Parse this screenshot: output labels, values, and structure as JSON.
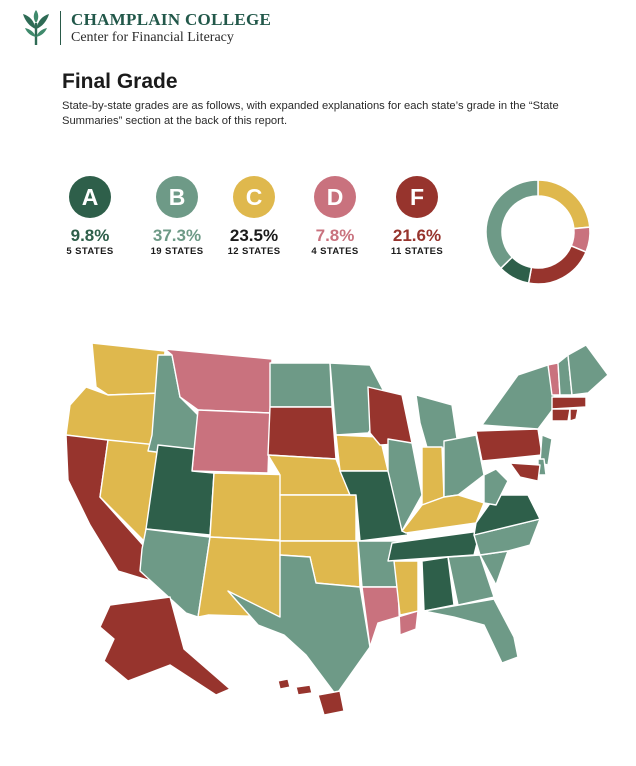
{
  "header": {
    "brand_name": "CHAMPLAIN COLLEGE",
    "brand_sub": "Center for Financial Literacy",
    "logo_icon": "leaf-logo-icon"
  },
  "title": "Final Grade",
  "intro": "State-by-state grades are as follows, with expanded explanations for each state’s grade in the “State Summaries” section at the back of this report.",
  "colors": {
    "A": "#2e5f4a",
    "B": "#6e9a87",
    "C": "#dfb84d",
    "D": "#c9727e",
    "F": "#97342d"
  },
  "chart_data": [
    {
      "type": "pie",
      "variant": "donut",
      "categories": [
        "A",
        "B",
        "C",
        "D",
        "F"
      ],
      "values": [
        9.8,
        37.3,
        23.5,
        7.8,
        21.6
      ],
      "value_labels": [
        "9.8%",
        "37.3%",
        "23.5%",
        "7.8%",
        "21.6%"
      ],
      "state_counts": [
        5,
        19,
        12,
        4,
        11
      ],
      "count_labels": [
        "5 STATES",
        "19 STATES",
        "12 STATES",
        "4 STATES",
        "11 STATES"
      ],
      "title": "",
      "legend": "left"
    },
    {
      "type": "choropleth",
      "title": "",
      "states": {
        "AK": "F",
        "AL": "A",
        "AR": "B",
        "AZ": "B",
        "CA": "F",
        "CO": "C",
        "CT": "F",
        "DE": "B",
        "FL": "B",
        "GA": "B",
        "HI": "F",
        "IA": "C",
        "ID": "B",
        "IL": "B",
        "IN": "C",
        "KS": "C",
        "KY": "C",
        "LA": "D",
        "MA": "F",
        "MD": "F",
        "ME": "B",
        "MI": "B",
        "MN": "B",
        "MO": "A",
        "MS": "C",
        "MT": "D",
        "NC": "B",
        "ND": "B",
        "NE": "C",
        "NH": "B",
        "NJ": "B",
        "NM": "C",
        "NV": "C",
        "NY": "B",
        "OH": "B",
        "OK": "C",
        "OR": "C",
        "PA": "F",
        "RI": "F",
        "SC": "B",
        "SD": "F",
        "TN": "A",
        "TX": "B",
        "UT": "A",
        "VA": "A",
        "VT": "D",
        "WA": "C",
        "WI": "F",
        "WV": "B",
        "WY": "D"
      }
    }
  ]
}
